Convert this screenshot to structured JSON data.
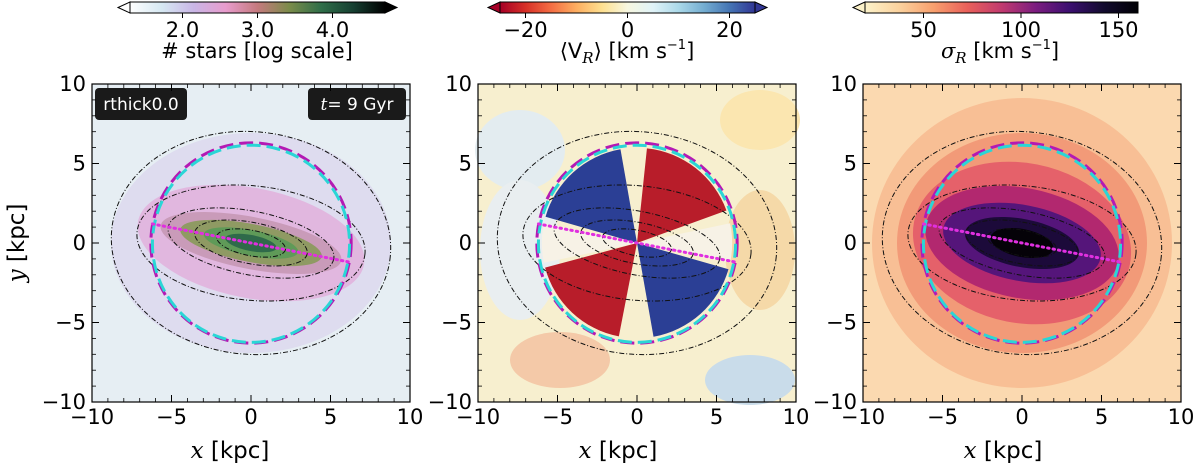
{
  "panels": [
    {
      "id": "density",
      "cbar": {
        "label": "# stars [log scale]",
        "ticks": [
          "2.0",
          "3.0",
          "4.0"
        ],
        "tick_values": [
          2.0,
          3.0,
          4.0
        ],
        "range": [
          1.3,
          4.7
        ],
        "extend": "both",
        "colormap": "cubehelix-reversed"
      },
      "labels": {
        "model": "rthick0.0",
        "time_prefix": "t",
        "time_value": "= 9 Gyr"
      },
      "show_ylabel": true
    },
    {
      "id": "mean-vr",
      "cbar": {
        "label": "⟨V",
        "label_sub": "R",
        "label_units": "⟩ [km s",
        "label_exp": "−1",
        "label_end": "]",
        "ticks": [
          "−20",
          "0",
          "20"
        ],
        "tick_values": [
          -20,
          0,
          20
        ],
        "range": [
          -25,
          25
        ],
        "extend": "both",
        "colormap": "red-yellow-blue"
      },
      "show_ylabel": false
    },
    {
      "id": "sigma-r",
      "cbar": {
        "label": "σ",
        "label_sub": "R",
        "label_units": " [km s",
        "label_exp": "−1",
        "label_end": "]",
        "ticks": [
          "50",
          "100",
          "150"
        ],
        "tick_values": [
          50,
          100,
          150
        ],
        "range": [
          20,
          160
        ],
        "extend": "min",
        "colormap": "magma-reversed"
      },
      "show_ylabel": false
    }
  ],
  "axes": {
    "xlabel_var": "x",
    "xlabel_unit": " [kpc]",
    "ylabel_var": "y",
    "ylabel_unit": " [kpc]",
    "xticks": [
      "−10",
      "−5",
      "0",
      "5",
      "10"
    ],
    "yticks": [
      "−10",
      "−5",
      "0",
      "5",
      "10"
    ]
  },
  "chart_data": {
    "type": "heatmap",
    "xlim": [
      -10,
      10
    ],
    "ylim": [
      -10,
      10
    ],
    "xticks": [
      -10,
      -5,
      0,
      5,
      10
    ],
    "yticks": [
      -10,
      -5,
      0,
      5,
      10
    ],
    "bar": {
      "angle_deg": -11,
      "half_length_kpc": 6.2
    },
    "circles": [
      {
        "radius_kpc": 6.3,
        "center": [
          0,
          0.0
        ],
        "color": "#b419b4",
        "style": "dashed"
      },
      {
        "radius_kpc": 6.2,
        "center": [
          0,
          -0.05
        ],
        "color": "#2ad6d6",
        "style": "dashed"
      }
    ],
    "bar_line": {
      "x0": -6.2,
      "y0": 1.2,
      "x1": 6.2,
      "y1": -1.2,
      "color": "#e030e0",
      "style": "dotted"
    },
    "contours": [
      {
        "a": 2.2,
        "b": 0.8
      },
      {
        "a": 3.6,
        "b": 1.3
      },
      {
        "a": 5.3,
        "b": 2.0
      },
      {
        "a": 7.2,
        "b": 3.6
      },
      {
        "a": 8.8,
        "b": 7.0
      }
    ]
  }
}
